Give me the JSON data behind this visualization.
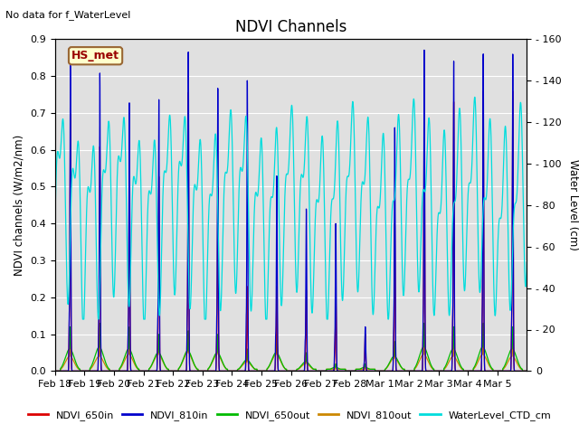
{
  "title": "NDVI Channels",
  "ylabel_left": "NDVI channels (W/m2/nm)",
  "ylabel_right": "Water Level (cm)",
  "no_data_text": "No data for f_WaterLevel",
  "station_label": "HS_met",
  "ylim_left": [
    0.0,
    0.9
  ],
  "ylim_right": [
    0,
    160
  ],
  "yticks_left": [
    0.0,
    0.1,
    0.2,
    0.3,
    0.4,
    0.5,
    0.6,
    0.7,
    0.8,
    0.9
  ],
  "yticks_right": [
    0,
    20,
    40,
    60,
    80,
    100,
    120,
    140,
    160
  ],
  "colors": {
    "ndvi_650in": "#dd0000",
    "ndvi_810in": "#0000cc",
    "ndvi_650out": "#00bb00",
    "ndvi_810out": "#cc8800",
    "water_level": "#00dddd"
  },
  "legend_labels": [
    "NDVI_650in",
    "NDVI_810in",
    "NDVI_650out",
    "NDVI_810out",
    "WaterLevel_CTD_cm"
  ],
  "background_color": "#e0e0e0",
  "x_tick_labels": [
    "Feb 18",
    "Feb 19",
    "Feb 20",
    "Feb 21",
    "Feb 22",
    "Feb 23",
    "Feb 24",
    "Feb 25",
    "Feb 26",
    "Feb 27",
    "Feb 28",
    "Mar 1",
    "Mar 2",
    "Mar 3",
    "Mar 4",
    "Mar 5"
  ],
  "n_days": 16,
  "peaks_810in": [
    0.83,
    0.81,
    0.73,
    0.74,
    0.87,
    0.77,
    0.79,
    0.53,
    0.44,
    0.4,
    0.12,
    0.66,
    0.87,
    0.84,
    0.86,
    0.86
  ],
  "peaks_650in": [
    0.7,
    0.61,
    0.62,
    0.53,
    0.76,
    0.5,
    0.23,
    0.23,
    0.22,
    0.21,
    0.1,
    0.4,
    0.77,
    0.73,
    0.76,
    0.76
  ],
  "peaks_650out": [
    0.12,
    0.13,
    0.12,
    0.1,
    0.11,
    0.1,
    0.06,
    0.1,
    0.05,
    0.02,
    0.02,
    0.08,
    0.13,
    0.12,
    0.13,
    0.12
  ],
  "peaks_810out": [
    0.08,
    0.08,
    0.09,
    0.09,
    0.1,
    0.09,
    0.05,
    0.09,
    0.04,
    0.01,
    0.01,
    0.07,
    0.09,
    0.08,
    0.09,
    0.08
  ],
  "water_params": {
    "base": 80,
    "amp1": 35,
    "freq1": 1.93,
    "phase1": -0.8,
    "amp2": 18,
    "freq2": 3.87,
    "phase2": 0.5,
    "amp3": 8,
    "freq3": 0.5,
    "phase3": 1.2,
    "min_clip": 25,
    "max_clip": 160
  }
}
